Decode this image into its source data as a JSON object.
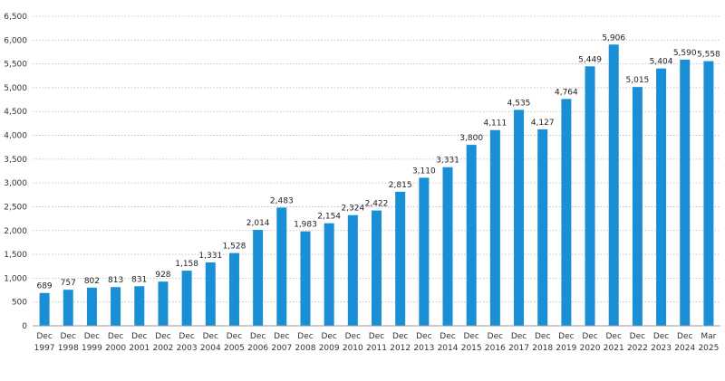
{
  "chart_data": {
    "type": "bar",
    "title": "",
    "xlabel": "",
    "ylabel": "",
    "ylim": [
      0,
      6500
    ],
    "y_ticks": [
      0,
      500,
      1000,
      1500,
      2000,
      2500,
      3000,
      3500,
      4000,
      4500,
      5000,
      5500,
      6000,
      6500
    ],
    "y_tick_labels": [
      "0",
      "500",
      "1,000",
      "1,500",
      "2,000",
      "2,500",
      "3,000",
      "3,500",
      "4,000",
      "4,500",
      "5,000",
      "5,500",
      "6,000",
      "6,500"
    ],
    "grid": true,
    "bar_color": "#1a8fd6",
    "categories": [
      [
        "Dec",
        "1997"
      ],
      [
        "Dec",
        "1998"
      ],
      [
        "Dec",
        "1999"
      ],
      [
        "Dec",
        "2000"
      ],
      [
        "Dec",
        "2001"
      ],
      [
        "Dec",
        "2002"
      ],
      [
        "Dec",
        "2003"
      ],
      [
        "Dec",
        "2004"
      ],
      [
        "Dec",
        "2005"
      ],
      [
        "Dec",
        "2006"
      ],
      [
        "Dec",
        "2007"
      ],
      [
        "Dec",
        "2008"
      ],
      [
        "Dec",
        "2009"
      ],
      [
        "Dec",
        "2010"
      ],
      [
        "Dec",
        "2011"
      ],
      [
        "Dec",
        "2012"
      ],
      [
        "Dec",
        "2013"
      ],
      [
        "Dec",
        "2014"
      ],
      [
        "Dec",
        "2015"
      ],
      [
        "Dec",
        "2016"
      ],
      [
        "Dec",
        "2017"
      ],
      [
        "Dec",
        "2018"
      ],
      [
        "Dec",
        "2019"
      ],
      [
        "Dec",
        "2020"
      ],
      [
        "Dec",
        "2021"
      ],
      [
        "Dec",
        "2022"
      ],
      [
        "Dec",
        "2023"
      ],
      [
        "Dec",
        "2024"
      ],
      [
        "Mar",
        "2025"
      ]
    ],
    "values": [
      689,
      757,
      802,
      813,
      831,
      928,
      1158,
      1331,
      1528,
      2014,
      2483,
      1983,
      2154,
      2324,
      2422,
      2815,
      3110,
      3331,
      3800,
      4111,
      4535,
      4127,
      4764,
      5449,
      5906,
      5015,
      5404,
      5590,
      5558
    ],
    "value_labels": [
      "689",
      "757",
      "802",
      "813",
      "831",
      "928",
      "1,158",
      "1,331",
      "1,528",
      "2,014",
      "2,483",
      "1,983",
      "2,154",
      "2,324",
      "2,422",
      "2,815",
      "3,110",
      "3,331",
      "3,800",
      "4,111",
      "4,535",
      "4,127",
      "4,764",
      "5,449",
      "5,906",
      "5,015",
      "5,404",
      "5,590",
      "5,558"
    ]
  }
}
